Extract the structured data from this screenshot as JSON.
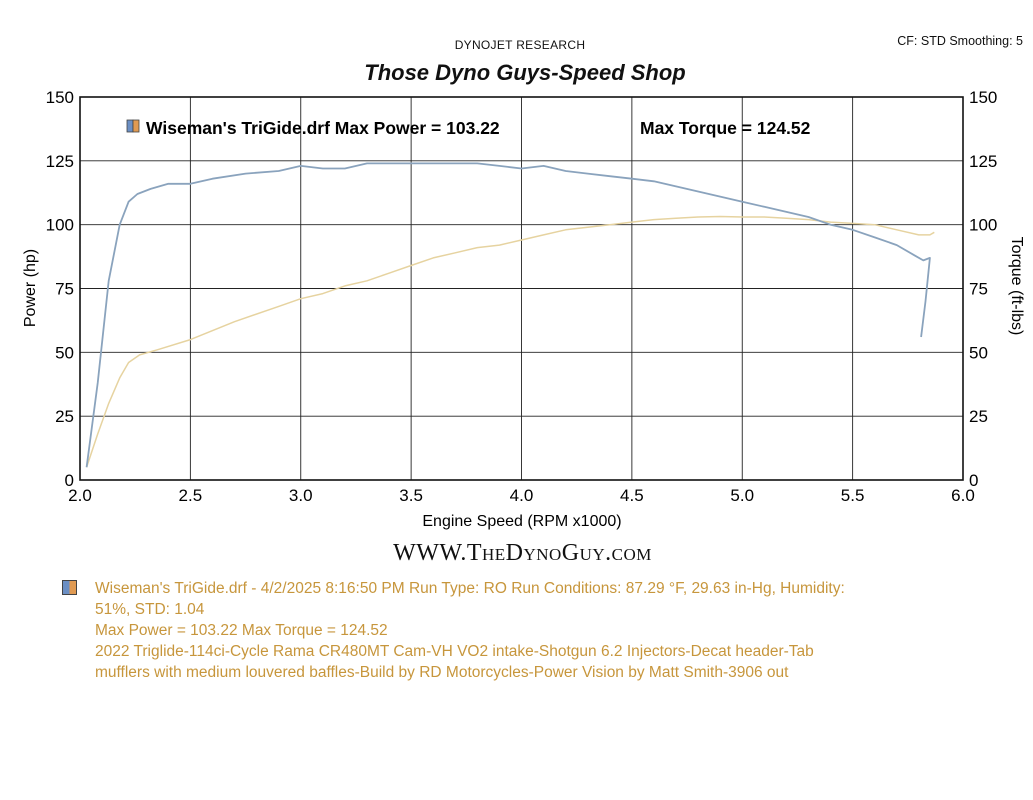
{
  "header": {
    "brand": "DYNOJET RESEARCH",
    "settings": "CF: STD  Smoothing: 5",
    "shop_title": "Those Dyno Guys-Speed Shop"
  },
  "legend": {
    "run_label": "Wiseman's TriGide.drf Max Power = 103.22",
    "torque_label": "Max Torque = 124.52"
  },
  "website": "WWW.TheDynoGuy.com",
  "notes": {
    "line1": "Wiseman's TriGide.drf - 4/2/2025 8:16:50 PM  Run Type: RO  Run Conditions: 87.29 °F, 29.63 in-Hg,  Humidity:",
    "line2": "51%, STD: 1.04",
    "line3": "Max Power = 103.22  Max Torque = 124.52",
    "line4": "2022 Triglide-114ci-Cycle Rama CR480MT Cam-VH VO2 intake-Shotgun 6.2 Injectors-Decat header-Tab",
    "line5": "mufflers with medium louvered baffles-Build by RD Motorcycles-Power Vision by Matt Smith-3906 out"
  },
  "colors": {
    "torque_line": "#8aa3bd",
    "power_line": "#e6d3a0",
    "notes_text": "#c7963c",
    "grid": "#222222"
  },
  "chart_data": {
    "type": "line",
    "xlabel": "Engine Speed (RPM x1000)",
    "ylabel": "Power (hp)",
    "y2label": "Torque (ft-lbs)",
    "xlim": [
      2.0,
      6.0
    ],
    "ylim": [
      0,
      150
    ],
    "y2lim": [
      0,
      150
    ],
    "x_ticks": [
      "2.0",
      "2.5",
      "3.0",
      "3.5",
      "4.0",
      "4.5",
      "5.0",
      "5.5",
      "6.0"
    ],
    "y_ticks": [
      "0",
      "25",
      "50",
      "75",
      "100",
      "125",
      "150"
    ],
    "y2_ticks": [
      "0",
      "25",
      "50",
      "75",
      "100",
      "125",
      "150"
    ],
    "grid": true,
    "series": [
      {
        "name": "Torque",
        "axis": "right",
        "x": [
          2.03,
          2.08,
          2.13,
          2.18,
          2.22,
          2.26,
          2.32,
          2.4,
          2.5,
          2.6,
          2.75,
          2.9,
          3.0,
          3.1,
          3.2,
          3.3,
          3.4,
          3.5,
          3.6,
          3.7,
          3.8,
          3.9,
          4.0,
          4.1,
          4.2,
          4.3,
          4.4,
          4.5,
          4.6,
          4.7,
          4.8,
          4.9,
          5.0,
          5.1,
          5.2,
          5.3,
          5.4,
          5.5,
          5.6,
          5.7,
          5.78,
          5.82,
          5.85,
          5.83,
          5.81
        ],
        "y": [
          5,
          38,
          78,
          100,
          109,
          112,
          114,
          116,
          116,
          118,
          120,
          121,
          123,
          122,
          122,
          124,
          124,
          124,
          124,
          124,
          124,
          123,
          122,
          123,
          121,
          120,
          119,
          118,
          117,
          115,
          113,
          111,
          109,
          107,
          105,
          103,
          100,
          98,
          95,
          92,
          88,
          86,
          87,
          70,
          56
        ]
      },
      {
        "name": "Power",
        "axis": "left",
        "x": [
          2.03,
          2.08,
          2.13,
          2.18,
          2.22,
          2.27,
          2.35,
          2.5,
          2.7,
          2.9,
          3.0,
          3.1,
          3.2,
          3.3,
          3.4,
          3.5,
          3.6,
          3.7,
          3.8,
          3.9,
          4.0,
          4.1,
          4.2,
          4.3,
          4.4,
          4.5,
          4.6,
          4.7,
          4.8,
          4.9,
          5.0,
          5.1,
          5.2,
          5.3,
          5.4,
          5.5,
          5.6,
          5.7,
          5.8,
          5.85,
          5.87
        ],
        "y": [
          5,
          18,
          30,
          40,
          46,
          49,
          51,
          55,
          62,
          68,
          71,
          73,
          76,
          78,
          81,
          84,
          87,
          89,
          91,
          92,
          94,
          96,
          98,
          99,
          100,
          101,
          102,
          102.5,
          103,
          103.2,
          103,
          103,
          102.5,
          102,
          101,
          100.5,
          100,
          98,
          96,
          96,
          97
        ]
      }
    ]
  }
}
